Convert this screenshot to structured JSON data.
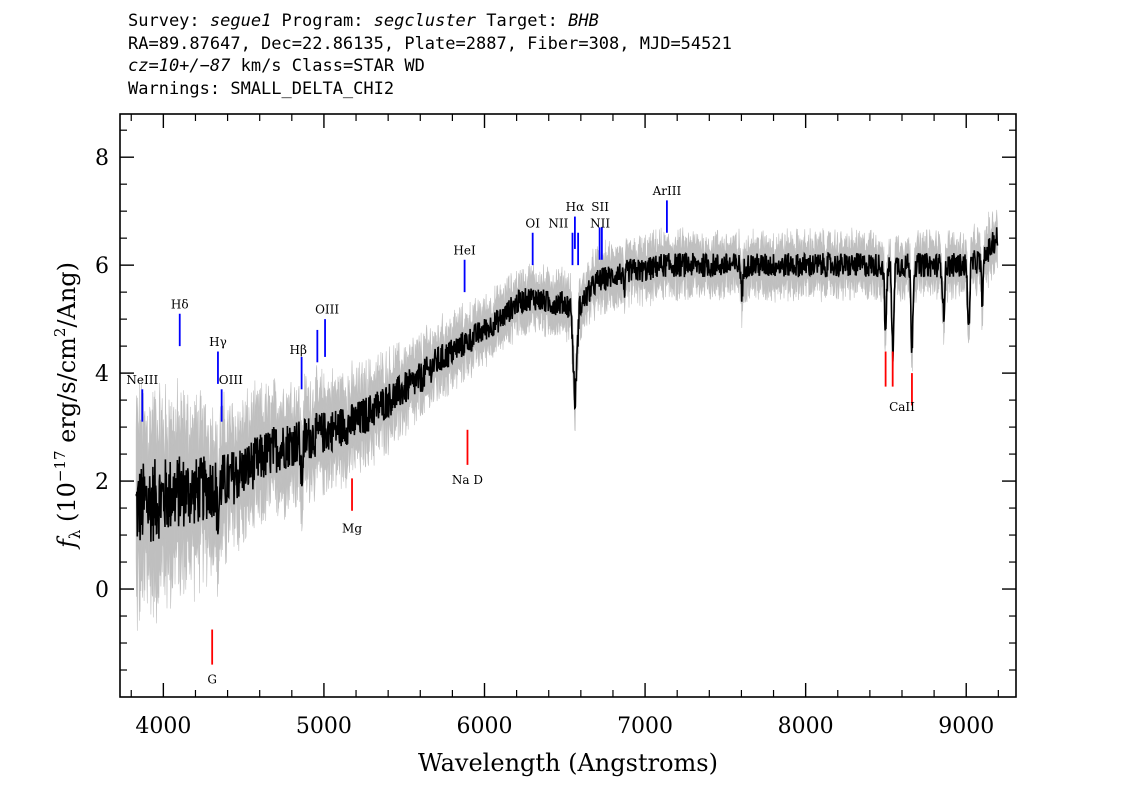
{
  "header": {
    "line1": {
      "a": "Survey: ",
      "b": "segue1",
      "c": " Program: ",
      "d": "segcluster",
      "e": " Target: ",
      "f": "BHB"
    },
    "line2": "RA=89.87647, Dec=22.86135, Plate=2887, Fiber=308, MJD=54521",
    "line3": {
      "a": "cz=10+/−87",
      "b": " km/s Class=STAR WD"
    },
    "line4": "Warnings: SMALL_DELTA_CHI2"
  },
  "chart_data": {
    "type": "line",
    "xlabel": "Wavelength (Angstroms)",
    "ylabel_parts": {
      "f": "f",
      "sub": "λ",
      "a": " (10",
      "exp1": "−17",
      "b": " erg/s/cm",
      "exp2": "2",
      "c": "/Ang)"
    },
    "xlim": [
      3730,
      9310
    ],
    "ylim": [
      -2.0,
      8.8
    ],
    "x_ticks": [
      4000,
      5000,
      6000,
      7000,
      8000,
      9000
    ],
    "y_ticks": [
      0,
      2,
      4,
      6,
      8
    ],
    "colors": {
      "flux": "#000000",
      "error": "#bfbfbf",
      "emission": "#0000ff",
      "absorption": "#ff0000"
    },
    "series": [
      {
        "x": [
          3830,
          3900,
          4000,
          4100,
          4200,
          4300,
          4400,
          4500,
          4600,
          4700,
          4800,
          4900,
          5000,
          5100,
          5200,
          5300,
          5400,
          5500,
          5600,
          5700,
          5800,
          5900,
          6000,
          6100,
          6200,
          6300,
          6400,
          6500,
          6540,
          6563,
          6590,
          6650,
          6700,
          6800,
          6900,
          7000,
          7100,
          7200,
          7300,
          7400,
          7500,
          7600,
          7700,
          7800,
          7900,
          8000,
          8100,
          8200,
          8300,
          8400,
          8500,
          8600,
          8700,
          8800,
          8900,
          9000,
          9100,
          9190
        ],
        "y": [
          1.5,
          1.6,
          1.7,
          1.8,
          1.8,
          1.9,
          2.0,
          2.2,
          2.4,
          2.6,
          2.7,
          2.8,
          2.9,
          3.0,
          3.1,
          3.3,
          3.5,
          3.7,
          3.9,
          4.2,
          4.4,
          4.6,
          4.8,
          5.0,
          5.3,
          5.4,
          5.3,
          5.3,
          5.2,
          3.4,
          5.2,
          5.5,
          5.7,
          5.8,
          5.9,
          5.9,
          6.0,
          6.0,
          6.0,
          6.0,
          6.0,
          6.0,
          6.0,
          6.0,
          6.0,
          6.0,
          6.0,
          6.0,
          6.0,
          6.0,
          6.0,
          6.0,
          6.0,
          6.0,
          6.0,
          6.0,
          6.1,
          6.5
        ]
      }
    ],
    "lines": [
      {
        "label": "NeIII",
        "type": "emission"
      },
      {
        "label": "Hδ",
        "type": "emission"
      },
      {
        "label": "Hγ",
        "type": "emission"
      },
      {
        "label": "OIII",
        "type": "emission"
      },
      {
        "label": "Hβ",
        "type": "emission"
      },
      {
        "label": "OIII",
        "type": "emission"
      },
      {
        "label": "HeI",
        "type": "emission"
      },
      {
        "label": "OI",
        "type": "emission"
      },
      {
        "label": "NII",
        "type": "emission"
      },
      {
        "label": "Hα",
        "type": "emission"
      },
      {
        "label": "SII",
        "type": "emission"
      },
      {
        "label": "NII",
        "type": "emission"
      },
      {
        "label": "ArIII",
        "type": "emission"
      },
      {
        "label": "G",
        "type": "absorption"
      },
      {
        "label": "Mg",
        "type": "absorption"
      },
      {
        "label": "Na D",
        "type": "absorption"
      },
      {
        "label": "CaII",
        "type": "absorption"
      }
    ]
  }
}
